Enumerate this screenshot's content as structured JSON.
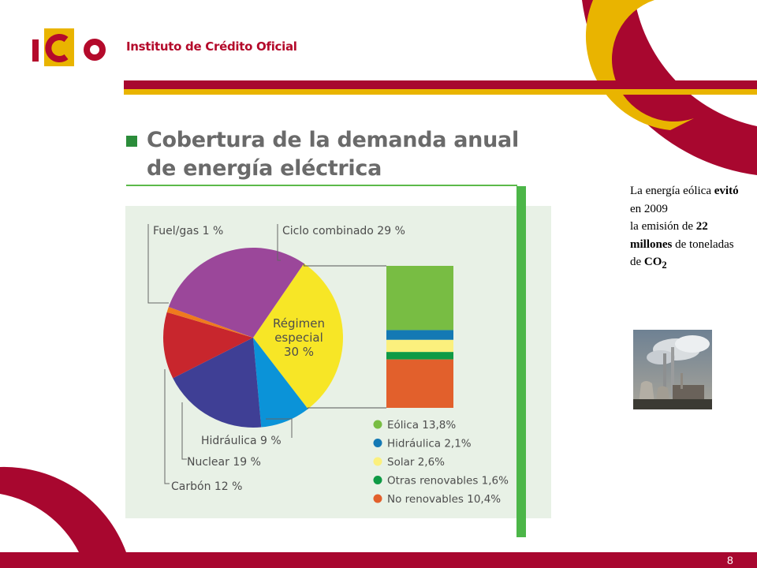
{
  "header": {
    "org_name": "Instituto de Crédito Oficial",
    "logo_text": "ICO"
  },
  "title": {
    "line1": "Cobertura de la demanda anual",
    "line2": "de energía eléctrica"
  },
  "side_note": {
    "t1": "La energía eólica ",
    "t2": "evitó",
    "t3": " en 2009",
    "t4": "la emisión de ",
    "t5": "22 millones",
    "t6": " de toneladas de ",
    "t7": "CO",
    "t8": "2"
  },
  "footer": {
    "page_number": "8"
  },
  "colors": {
    "brand_red": "#a8072f",
    "brand_yellow": "#e9b400",
    "panel_green": "#4cb648"
  },
  "chart_data": [
    {
      "type": "pie",
      "slices": [
        {
          "label": "Régimen especial 30 %",
          "value": 30,
          "color": "#f7e626"
        },
        {
          "label": "Hidráulica 9 %",
          "value": 9,
          "color": "#0b93d8"
        },
        {
          "label": "Nuclear 19 %",
          "value": 19,
          "color": "#3f3f95"
        },
        {
          "label": "Carbón 12 %",
          "value": 12,
          "color": "#c8262d"
        },
        {
          "label": "Fuel/gas 1 %",
          "value": 1,
          "color": "#ef7a1e"
        },
        {
          "label": "Ciclo combinado 29 %",
          "value": 29,
          "color": "#9b479a"
        }
      ],
      "inner_label": [
        "Régimen",
        "especial",
        "30 %"
      ]
    },
    {
      "type": "bar",
      "stacked": true,
      "segments": [
        {
          "label": "Eólica 13,8%",
          "value": 13.8,
          "color": "#78bd43"
        },
        {
          "label": "Hidráulica 2,1%",
          "value": 2.1,
          "color": "#1479b4"
        },
        {
          "label": "Solar 2,6%",
          "value": 2.6,
          "color": "#fbf07d"
        },
        {
          "label": "Otras renovables 1,6%",
          "value": 1.6,
          "color": "#0f9a45"
        },
        {
          "label": "No renovables 10,4%",
          "value": 10.4,
          "color": "#e2602c"
        }
      ]
    }
  ]
}
